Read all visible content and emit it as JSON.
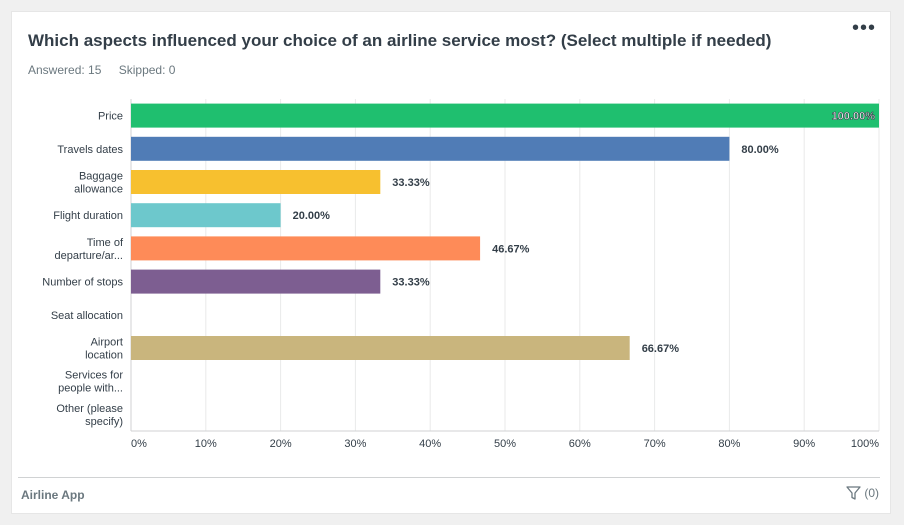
{
  "question": {
    "title": "Which aspects influenced your choice of an airline service most? (Select multiple if needed)",
    "answered": "Answered: 15",
    "skipped": "Skipped: 0",
    "more_icon": "more-horizontal-icon"
  },
  "footer": {
    "survey_name": "Airline App",
    "filter_icon": "filter-icon",
    "filter_count": "(0)"
  },
  "chart_data": {
    "type": "bar",
    "orientation": "horizontal",
    "categories": [
      [
        "Price"
      ],
      [
        "Travels dates"
      ],
      [
        "Baggage",
        "allowance"
      ],
      [
        "Flight duration"
      ],
      [
        "Time of",
        "departure/ar..."
      ],
      [
        "Number of stops"
      ],
      [
        "Seat allocation"
      ],
      [
        "Airport",
        "location"
      ],
      [
        "Services for",
        "people with..."
      ],
      [
        "Other (please",
        "specify)"
      ]
    ],
    "values": [
      100.0,
      80.0,
      33.33,
      20.0,
      46.67,
      33.33,
      0,
      66.67,
      0,
      0
    ],
    "labels": [
      "100.00%",
      "80.00%",
      "33.33%",
      "20.00%",
      "46.67%",
      "33.33%",
      "",
      "66.67%",
      "",
      ""
    ],
    "colors": [
      "#1fbf6f",
      "#507cb6",
      "#f7c02f",
      "#6dc8cc",
      "#fe8b58",
      "#7d5e91",
      "#6dc8cc",
      "#c9b57d",
      "#6dc8cc",
      "#6dc8cc"
    ],
    "xlim": [
      0,
      100
    ],
    "xticks": [
      "0%",
      "10%",
      "20%",
      "30%",
      "40%",
      "50%",
      "60%",
      "70%",
      "80%",
      "90%",
      "100%"
    ],
    "grid": true
  }
}
